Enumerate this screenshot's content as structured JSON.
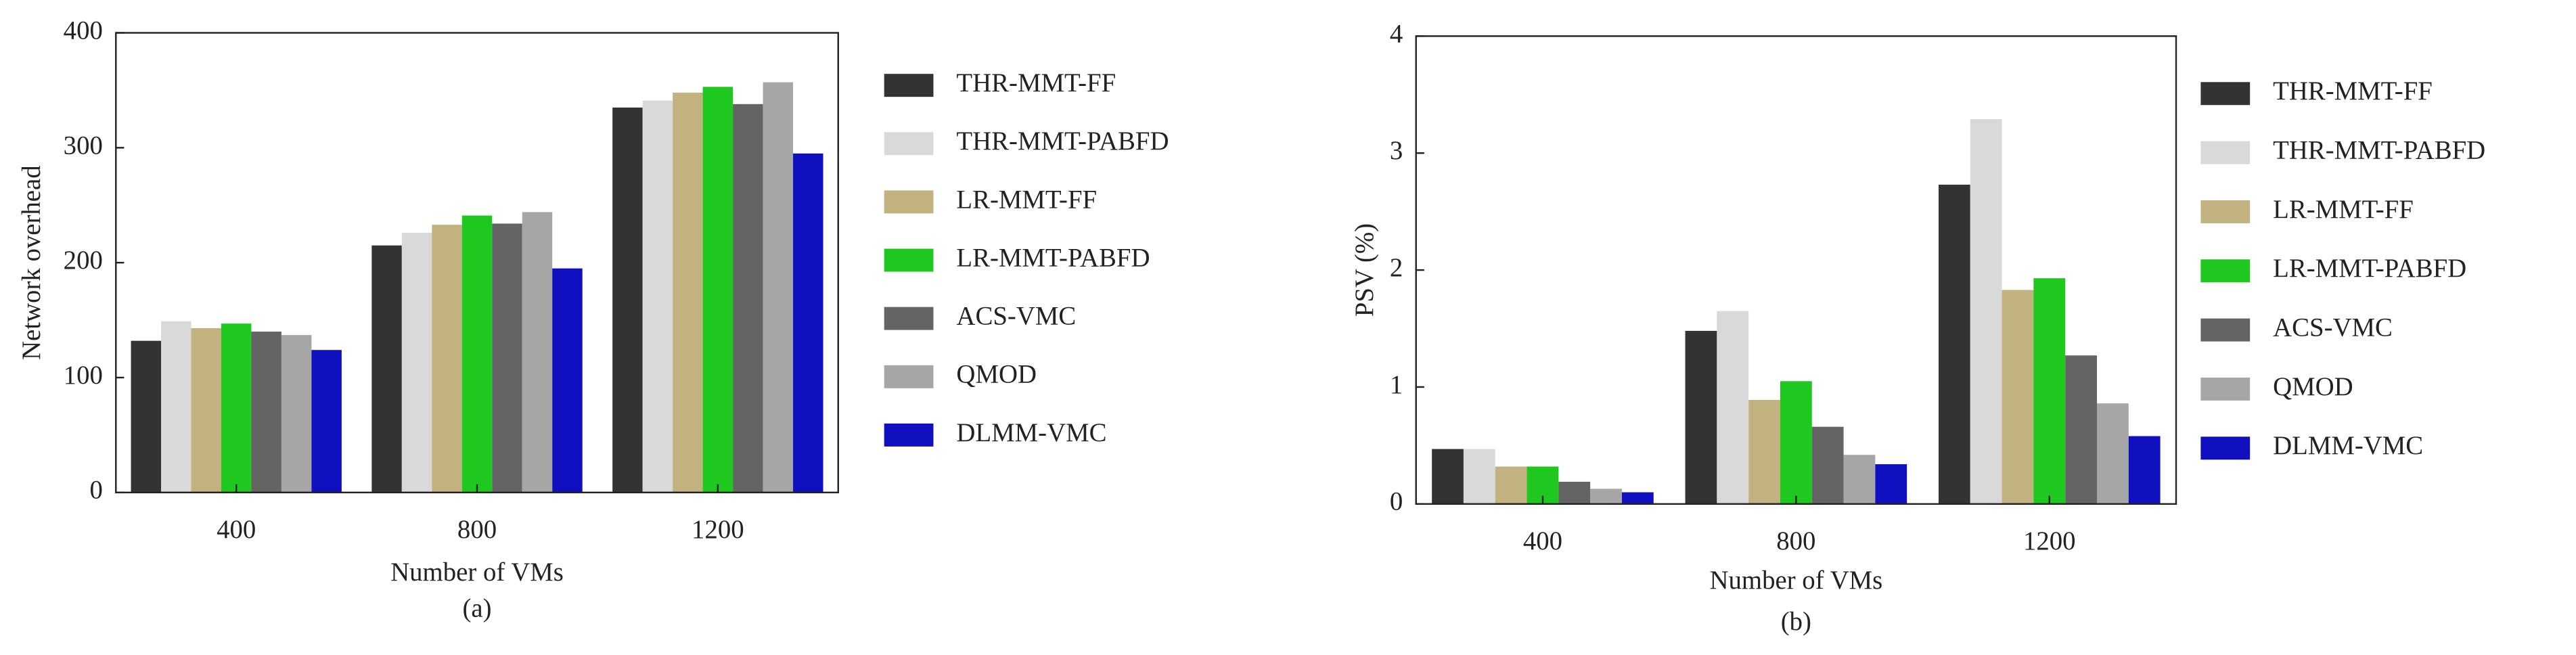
{
  "chart_data": [
    {
      "type": "bar",
      "caption": "(a)",
      "x_label": "Number of  VMs",
      "y_label": "Network overhead",
      "categories": [
        "400",
        "800",
        "1200"
      ],
      "ylim": [
        0,
        400
      ],
      "yticks": [
        0,
        100,
        200,
        300,
        400
      ],
      "grid": false,
      "series": [
        {
          "name": "THR-MMT-FF",
          "color": "#333333",
          "values": [
            132,
            215,
            335
          ]
        },
        {
          "name": "THR-MMT-PABFD",
          "color": "#d9d9d9",
          "values": [
            149,
            226,
            341
          ]
        },
        {
          "name": "LR-MMT-FF",
          "color": "#c2b280",
          "values": [
            143,
            233,
            348
          ]
        },
        {
          "name": "LR-MMT-PABFD",
          "color": "#1ec81e",
          "values": [
            147,
            241,
            353
          ]
        },
        {
          "name": "ACS-VMC",
          "color": "#646464",
          "values": [
            140,
            234,
            338
          ]
        },
        {
          "name": "QMOD",
          "color": "#a6a6a6",
          "values": [
            137,
            244,
            357
          ]
        },
        {
          "name": "DLMM-VMC",
          "color": "#1010c0",
          "values": [
            124,
            195,
            295
          ]
        }
      ]
    },
    {
      "type": "bar",
      "caption": "(b)",
      "x_label": "Number of  VMs",
      "y_label": "PSV (%)",
      "categories": [
        "400",
        "800",
        "1200"
      ],
      "ylim": [
        0,
        4
      ],
      "yticks": [
        0,
        1,
        2,
        3,
        4
      ],
      "grid": false,
      "series": [
        {
          "name": "THR-MMT-FF",
          "color": "#333333",
          "values": [
            0.47,
            1.48,
            2.73
          ]
        },
        {
          "name": "THR-MMT-PABFD",
          "color": "#d9d9d9",
          "values": [
            0.47,
            1.65,
            3.29
          ]
        },
        {
          "name": "LR-MMT-FF",
          "color": "#c2b280",
          "values": [
            0.32,
            0.89,
            1.83
          ]
        },
        {
          "name": "LR-MMT-PABFD",
          "color": "#1ec81e",
          "values": [
            0.32,
            1.05,
            1.93
          ]
        },
        {
          "name": "ACS-VMC",
          "color": "#646464",
          "values": [
            0.19,
            0.66,
            1.27
          ]
        },
        {
          "name": "QMOD",
          "color": "#a6a6a6",
          "values": [
            0.13,
            0.42,
            0.86
          ]
        },
        {
          "name": "DLMM-VMC",
          "color": "#1010c0",
          "values": [
            0.1,
            0.34,
            0.58
          ]
        }
      ]
    }
  ]
}
